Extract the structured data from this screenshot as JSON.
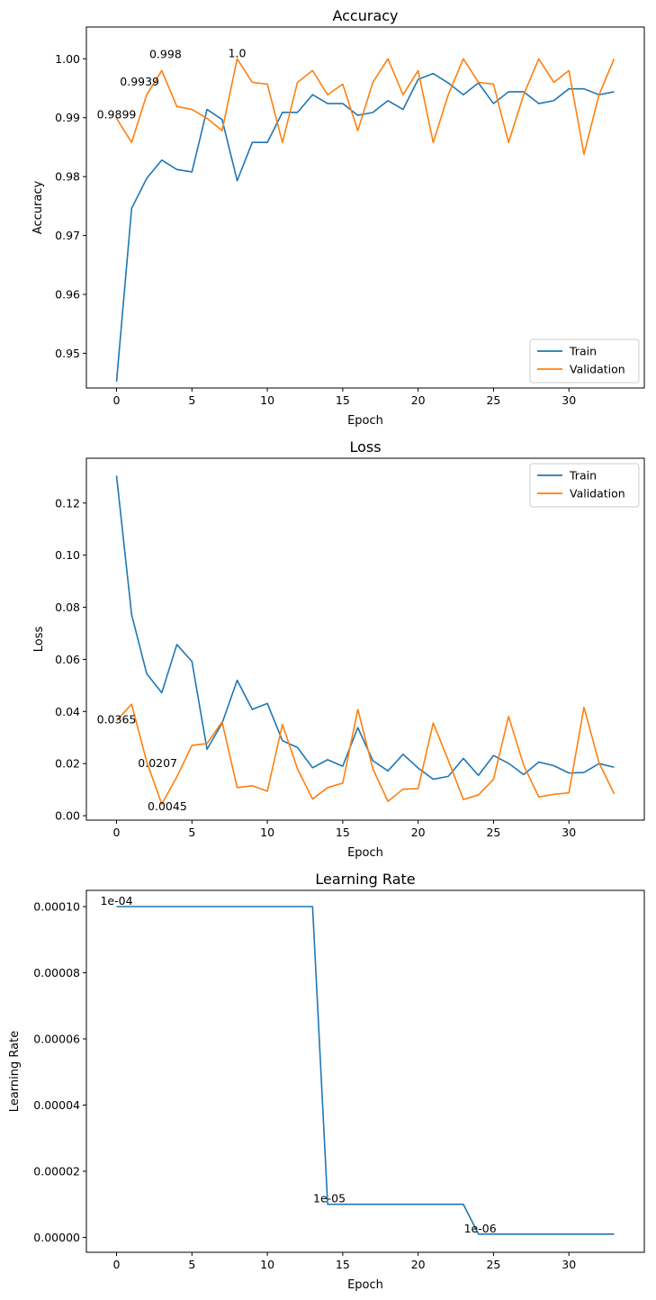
{
  "chart_data": [
    {
      "type": "line",
      "title": "Accuracy",
      "xlabel": "Epoch",
      "ylabel": "Accuracy",
      "xlim": [
        -2,
        35
      ],
      "ylim": [
        0.9441,
        1.0054
      ],
      "xticks": [
        0,
        5,
        10,
        15,
        20,
        25,
        30
      ],
      "yticks": [
        0.95,
        0.96,
        0.97,
        0.98,
        0.99,
        1.0
      ],
      "ytick_labels": [
        "0.95",
        "0.96",
        "0.97",
        "0.98",
        "0.99",
        "1.00"
      ],
      "grid": false,
      "legend": "lower-right",
      "x": [
        0,
        1,
        2,
        3,
        4,
        5,
        6,
        7,
        8,
        9,
        10,
        11,
        12,
        13,
        14,
        15,
        16,
        17,
        18,
        19,
        20,
        21,
        22,
        23,
        24,
        25,
        26,
        27,
        28,
        29,
        30,
        31,
        32,
        33
      ],
      "series": [
        {
          "name": "Train",
          "color": "#1f77b4",
          "values": [
            0.9452,
            0.9746,
            0.9797,
            0.9828,
            0.9812,
            0.9808,
            0.9914,
            0.9897,
            0.9793,
            0.9858,
            0.9858,
            0.9909,
            0.9909,
            0.9939,
            0.9924,
            0.9924,
            0.9904,
            0.9909,
            0.9929,
            0.9914,
            0.9965,
            0.9975,
            0.9959,
            0.9939,
            0.9959,
            0.9924,
            0.9944,
            0.9944,
            0.9924,
            0.9929,
            0.9949,
            0.9949,
            0.9939,
            0.9944
          ]
        },
        {
          "name": "Validation",
          "color": "#ff7f0e",
          "values": [
            0.9899,
            0.9858,
            0.9939,
            0.998,
            0.9919,
            0.9914,
            0.9899,
            0.9878,
            1.0,
            0.996,
            0.9957,
            0.9858,
            0.996,
            0.998,
            0.9939,
            0.9957,
            0.9878,
            0.996,
            1.0,
            0.9939,
            0.998,
            0.9858,
            0.9939,
            1.0,
            0.996,
            0.9957,
            0.9858,
            0.9939,
            1.0,
            0.996,
            0.998,
            0.9838,
            0.9939,
            1.0
          ]
        }
      ],
      "annotations": [
        {
          "text": "0.9899",
          "x": 0,
          "y": 0.9899,
          "align": "middle"
        },
        {
          "text": "0.9939",
          "x": 2,
          "y": 0.9939,
          "align": "end"
        },
        {
          "text": "0.998",
          "x": 3,
          "y": 0.998,
          "align": "end"
        },
        {
          "text": "1.0",
          "x": 8,
          "y": 1.0,
          "align": "middle"
        }
      ]
    },
    {
      "type": "line",
      "title": "Loss",
      "xlabel": "Epoch",
      "ylabel": "Loss",
      "xlim": [
        -2,
        35
      ],
      "ylim": [
        -0.0017,
        0.1372
      ],
      "xticks": [
        0,
        5,
        10,
        15,
        20,
        25,
        30
      ],
      "yticks": [
        0.0,
        0.02,
        0.04,
        0.06,
        0.08,
        0.1,
        0.12
      ],
      "ytick_labels": [
        "0.00",
        "0.02",
        "0.04",
        "0.06",
        "0.08",
        "0.10",
        "0.12"
      ],
      "grid": false,
      "legend": "upper-right",
      "x": [
        0,
        1,
        2,
        3,
        4,
        5,
        6,
        7,
        8,
        9,
        10,
        11,
        12,
        13,
        14,
        15,
        16,
        17,
        18,
        19,
        20,
        21,
        22,
        23,
        24,
        25,
        26,
        27,
        28,
        29,
        30,
        31,
        32,
        33
      ],
      "series": [
        {
          "name": "Train",
          "color": "#1f77b4",
          "values": [
            0.1305,
            0.0772,
            0.0545,
            0.0472,
            0.0657,
            0.0592,
            0.0255,
            0.0355,
            0.052,
            0.0408,
            0.0431,
            0.0288,
            0.0262,
            0.0184,
            0.0215,
            0.019,
            0.0338,
            0.0211,
            0.0172,
            0.0236,
            0.0183,
            0.014,
            0.0151,
            0.022,
            0.0155,
            0.0231,
            0.0201,
            0.0158,
            0.0206,
            0.0192,
            0.0164,
            0.0166,
            0.02,
            0.0186
          ]
        },
        {
          "name": "Validation",
          "color": "#ff7f0e",
          "values": [
            0.0365,
            0.0428,
            0.0207,
            0.0045,
            0.0149,
            0.027,
            0.0277,
            0.036,
            0.0108,
            0.0115,
            0.0094,
            0.035,
            0.018,
            0.0064,
            0.0108,
            0.0125,
            0.0408,
            0.018,
            0.0055,
            0.0102,
            0.0104,
            0.0356,
            0.0213,
            0.0062,
            0.008,
            0.014,
            0.0381,
            0.0194,
            0.0072,
            0.0082,
            0.0088,
            0.0416,
            0.0203,
            0.0084
          ]
        }
      ],
      "annotations": [
        {
          "text": "0.0365",
          "x": 0,
          "y": 0.0365,
          "align": "middle"
        },
        {
          "text": "0.0207",
          "x": 2,
          "y": 0.0207,
          "align": "end"
        },
        {
          "text": "0.0045",
          "x": 3,
          "y": 0.0045,
          "align": "end"
        }
      ]
    },
    {
      "type": "line",
      "title": "Learning Rate",
      "xlabel": "Epoch",
      "ylabel": "Learning Rate",
      "xlim": [
        -2,
        35
      ],
      "ylim": [
        -4.5e-06,
        0.0001049
      ],
      "xticks": [
        0,
        5,
        10,
        15,
        20,
        25,
        30
      ],
      "yticks": [
        0,
        2e-05,
        4e-05,
        6e-05,
        8e-05,
        0.0001
      ],
      "ytick_labels": [
        "0.00000",
        "0.00002",
        "0.00004",
        "0.00006",
        "0.00008",
        "0.00010"
      ],
      "grid": false,
      "legend": "none",
      "x": [
        0,
        1,
        2,
        3,
        4,
        5,
        6,
        7,
        8,
        9,
        10,
        11,
        12,
        13,
        14,
        15,
        16,
        17,
        18,
        19,
        20,
        21,
        22,
        23,
        24,
        25,
        26,
        27,
        28,
        29,
        30,
        31,
        32,
        33
      ],
      "series": [
        {
          "name": "",
          "color": "#1f77b4",
          "values": [
            0.0001,
            0.0001,
            0.0001,
            0.0001,
            0.0001,
            0.0001,
            0.0001,
            0.0001,
            0.0001,
            0.0001,
            0.0001,
            0.0001,
            0.0001,
            0.0001,
            1e-05,
            1e-05,
            1e-05,
            1e-05,
            1e-05,
            1e-05,
            1e-05,
            1e-05,
            1e-05,
            1e-05,
            1e-06,
            1e-06,
            1e-06,
            1e-06,
            1e-06,
            1e-06,
            1e-06,
            1e-06,
            1e-06,
            1e-06
          ]
        }
      ],
      "annotations": [
        {
          "text": "1e-04",
          "x": 0,
          "y": 0.0001,
          "align": "middle"
        },
        {
          "text": "1e-05",
          "x": 14,
          "y": 1e-05,
          "align": "end"
        },
        {
          "text": "1e-06",
          "x": 24,
          "y": 1e-06,
          "align": "end"
        }
      ]
    }
  ]
}
